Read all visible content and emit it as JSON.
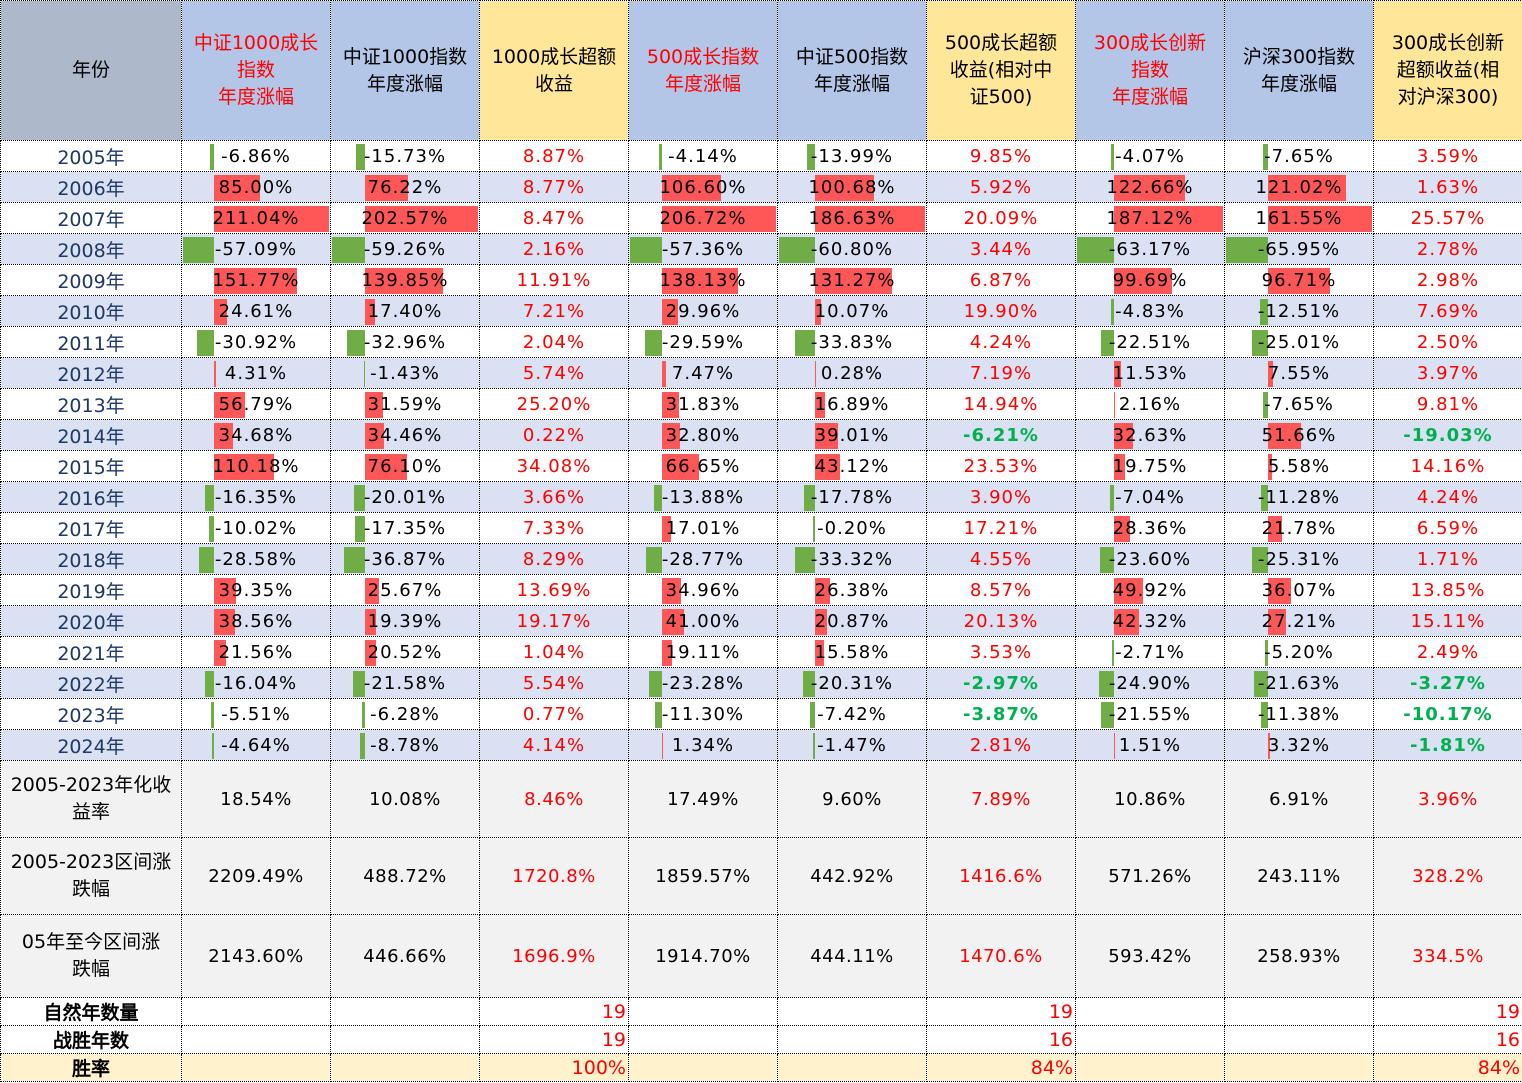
{
  "colors": {
    "positive_bar": "#ff5757",
    "negative_bar": "#70ad47",
    "excess_positive": "#ff0000",
    "excess_negative": "#00b050",
    "header_blue": "#b4c6e7",
    "header_yellow": "#ffe699",
    "row_alt": "#d9e1f2"
  },
  "header": {
    "year_label": "年份",
    "columns": [
      {
        "lines": [
          "中证1000成长",
          "指数",
          "年度涨幅"
        ],
        "red": true,
        "kind": "index"
      },
      {
        "lines": [
          "中证1000指数",
          "年度涨幅"
        ],
        "red": false,
        "kind": "index"
      },
      {
        "lines": [
          "1000成长超额",
          "收益"
        ],
        "red": false,
        "kind": "excess"
      },
      {
        "lines": [
          "500成长指数",
          "年度涨幅"
        ],
        "red": true,
        "kind": "index"
      },
      {
        "lines": [
          "中证500指数",
          "年度涨幅"
        ],
        "red": false,
        "kind": "index"
      },
      {
        "lines": [
          "500成长超额",
          "收益(相对中",
          "证500)"
        ],
        "red": false,
        "kind": "excess"
      },
      {
        "lines": [
          "300成长创新",
          "指数",
          "年度涨幅"
        ],
        "red": true,
        "kind": "index"
      },
      {
        "lines": [
          "沪深300指数",
          "年度涨幅"
        ],
        "red": false,
        "kind": "index"
      },
      {
        "lines": [
          "300成长创新",
          "超额收益(相",
          "对沪深300)"
        ],
        "red": false,
        "kind": "excess"
      }
    ]
  },
  "rows": [
    {
      "year": "2005年",
      "values": [
        "-6.86%",
        "-15.73%",
        "8.87%",
        "-4.14%",
        "-13.99%",
        "9.85%",
        "-4.07%",
        "-7.65%",
        "3.59%"
      ]
    },
    {
      "year": "2006年",
      "values": [
        "85.00%",
        "76.22%",
        "8.77%",
        "106.60%",
        "100.68%",
        "5.92%",
        "122.66%",
        "121.02%",
        "1.63%"
      ]
    },
    {
      "year": "2007年",
      "values": [
        "211.04%",
        "202.57%",
        "8.47%",
        "206.72%",
        "186.63%",
        "20.09%",
        "187.12%",
        "161.55%",
        "25.57%"
      ]
    },
    {
      "year": "2008年",
      "values": [
        "-57.09%",
        "-59.26%",
        "2.16%",
        "-57.36%",
        "-60.80%",
        "3.44%",
        "-63.17%",
        "-65.95%",
        "2.78%"
      ]
    },
    {
      "year": "2009年",
      "values": [
        "151.77%",
        "139.85%",
        "11.91%",
        "138.13%",
        "131.27%",
        "6.87%",
        "99.69%",
        "96.71%",
        "2.98%"
      ]
    },
    {
      "year": "2010年",
      "values": [
        "24.61%",
        "17.40%",
        "7.21%",
        "29.96%",
        "10.07%",
        "19.90%",
        "-4.83%",
        "-12.51%",
        "7.69%"
      ]
    },
    {
      "year": "2011年",
      "values": [
        "-30.92%",
        "-32.96%",
        "2.04%",
        "-29.59%",
        "-33.83%",
        "4.24%",
        "-22.51%",
        "-25.01%",
        "2.50%"
      ]
    },
    {
      "year": "2012年",
      "values": [
        "4.31%",
        "-1.43%",
        "5.74%",
        "7.47%",
        "0.28%",
        "7.19%",
        "11.53%",
        "7.55%",
        "3.97%"
      ]
    },
    {
      "year": "2013年",
      "values": [
        "56.79%",
        "31.59%",
        "25.20%",
        "31.83%",
        "16.89%",
        "14.94%",
        "2.16%",
        "-7.65%",
        "9.81%"
      ]
    },
    {
      "year": "2014年",
      "values": [
        "34.68%",
        "34.46%",
        "0.22%",
        "32.80%",
        "39.01%",
        "-6.21%",
        "32.63%",
        "51.66%",
        "-19.03%"
      ]
    },
    {
      "year": "2015年",
      "values": [
        "110.18%",
        "76.10%",
        "34.08%",
        "66.65%",
        "43.12%",
        "23.53%",
        "19.75%",
        "5.58%",
        "14.16%"
      ]
    },
    {
      "year": "2016年",
      "values": [
        "-16.35%",
        "-20.01%",
        "3.66%",
        "-13.88%",
        "-17.78%",
        "3.90%",
        "-7.04%",
        "-11.28%",
        "4.24%"
      ]
    },
    {
      "year": "2017年",
      "values": [
        "-10.02%",
        "-17.35%",
        "7.33%",
        "17.01%",
        "-0.20%",
        "17.21%",
        "28.36%",
        "21.78%",
        "6.59%"
      ]
    },
    {
      "year": "2018年",
      "values": [
        "-28.58%",
        "-36.87%",
        "8.29%",
        "-28.77%",
        "-33.32%",
        "4.55%",
        "-23.60%",
        "-25.31%",
        "1.71%"
      ]
    },
    {
      "year": "2019年",
      "values": [
        "39.35%",
        "25.67%",
        "13.69%",
        "34.96%",
        "26.38%",
        "8.57%",
        "49.92%",
        "36.07%",
        "13.85%"
      ]
    },
    {
      "year": "2020年",
      "values": [
        "38.56%",
        "19.39%",
        "19.17%",
        "41.00%",
        "20.87%",
        "20.13%",
        "42.32%",
        "27.21%",
        "15.11%"
      ]
    },
    {
      "year": "2021年",
      "values": [
        "21.56%",
        "20.52%",
        "1.04%",
        "19.11%",
        "15.58%",
        "3.53%",
        "-2.71%",
        "-5.20%",
        "2.49%"
      ]
    },
    {
      "year": "2022年",
      "values": [
        "-16.04%",
        "-21.58%",
        "5.54%",
        "-23.28%",
        "-20.31%",
        "-2.97%",
        "-24.90%",
        "-21.63%",
        "-3.27%"
      ]
    },
    {
      "year": "2023年",
      "values": [
        "-5.51%",
        "-6.28%",
        "0.77%",
        "-11.30%",
        "-7.42%",
        "-3.87%",
        "-21.55%",
        "-11.38%",
        "-10.17%"
      ]
    },
    {
      "year": "2024年",
      "values": [
        "-4.64%",
        "-8.78%",
        "4.14%",
        "1.34%",
        "-1.47%",
        "2.81%",
        "1.51%",
        "3.32%",
        "-1.81%"
      ]
    }
  ],
  "summary": [
    {
      "label_lines": [
        "2005-2023年化收",
        "益率"
      ],
      "values": [
        "18.54%",
        "10.08%",
        "8.46%",
        "17.49%",
        "9.60%",
        "7.89%",
        "10.86%",
        "6.91%",
        "3.96%"
      ]
    },
    {
      "label_lines": [
        "2005-2023区间涨",
        "跌幅"
      ],
      "values": [
        "2209.49%",
        "488.72%",
        "1720.8%",
        "1859.57%",
        "442.92%",
        "1416.6%",
        "571.26%",
        "243.11%",
        "328.2%"
      ]
    },
    {
      "label_lines": [
        "05年至今区间涨",
        "跌幅"
      ],
      "values": [
        "2143.60%",
        "446.66%",
        "1696.9%",
        "1914.70%",
        "444.11%",
        "1470.6%",
        "593.42%",
        "258.93%",
        "334.5%"
      ]
    }
  ],
  "counts": [
    {
      "label": "自然年数量",
      "values": [
        "",
        "",
        "19",
        "",
        "",
        "19",
        "",
        "",
        "19"
      ]
    },
    {
      "label": "战胜年数",
      "values": [
        "",
        "",
        "19",
        "",
        "",
        "16",
        "",
        "",
        "16"
      ]
    },
    {
      "label": "胜率",
      "values": [
        "",
        "",
        "100%",
        "",
        "",
        "84%",
        "",
        "",
        "84%"
      ]
    }
  ]
}
